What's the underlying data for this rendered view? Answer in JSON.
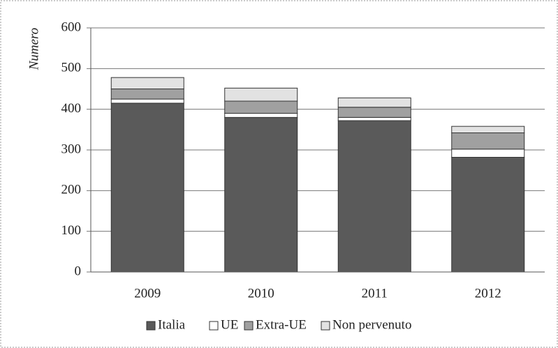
{
  "chart_data": {
    "type": "stacked_bar",
    "y_label": "Numero",
    "categories": [
      "2009",
      "2010",
      "2011",
      "2012"
    ],
    "series": [
      {
        "name": "Italia",
        "color": "#5a5a5a",
        "values": [
          415,
          380,
          372,
          282
        ]
      },
      {
        "name": "UE",
        "color": "#ffffff",
        "values": [
          10,
          10,
          8,
          20
        ]
      },
      {
        "name": "Extra-UE",
        "color": "#a0a0a0",
        "values": [
          25,
          30,
          25,
          40
        ]
      },
      {
        "name": "Non pervenuto",
        "color": "#e2e2e2",
        "values": [
          28,
          32,
          23,
          16
        ]
      }
    ],
    "ylim": [
      0,
      600
    ],
    "yticks": [
      0,
      100,
      200,
      300,
      400,
      500,
      600
    ],
    "grid": true,
    "legend": "bottom"
  }
}
